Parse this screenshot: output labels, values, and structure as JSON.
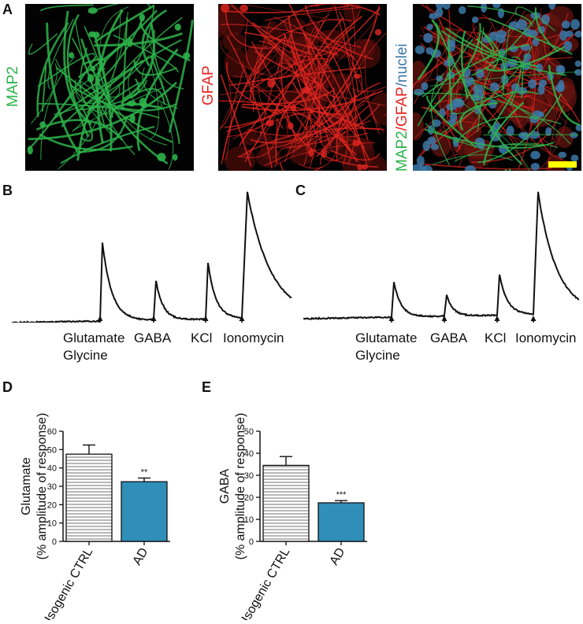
{
  "figure": {
    "panel_letters": {
      "A": "A",
      "B": "B",
      "C": "C",
      "D": "D",
      "E": "E"
    },
    "panel_a": {
      "label_map2": "MAP2",
      "label_gfap": "GFAP",
      "merge_label": {
        "part1": "MAP2",
        "sep1": "/",
        "part2": "GFAP",
        "sep2": "/",
        "part3": "nuclei"
      },
      "colors": {
        "map2": "#2db34a",
        "gfap": "#e52620",
        "nuclei": "#3b78a8",
        "scale_bar": "#ffff00"
      }
    },
    "trace_b": {
      "stimuli": [
        {
          "line1": "Glutamate",
          "line2": "Glycine"
        },
        {
          "line1": "GABA",
          "line2": ""
        },
        {
          "line1": "KCl",
          "line2": ""
        },
        {
          "line1": "Ionomycin",
          "line2": ""
        }
      ]
    },
    "trace_c": {
      "stimuli": [
        {
          "line1": "Glutamate",
          "line2": "Glycine"
        },
        {
          "line1": "GABA",
          "line2": ""
        },
        {
          "line1": "KCl",
          "line2": ""
        },
        {
          "line1": "Ionomycin",
          "line2": ""
        }
      ]
    }
  },
  "chart_data": [
    {
      "panel": "D",
      "type": "bar",
      "categories": [
        "Isogenic CTRL",
        "AD"
      ],
      "values": [
        47.5,
        32.5
      ],
      "errors": [
        5.0,
        2.0
      ],
      "significance": [
        "",
        "**"
      ],
      "ylabel_line1": "Glutamate",
      "ylabel_line2": "(% amplitude of response)",
      "ylim": [
        0,
        60
      ],
      "yticks": [
        0,
        10,
        20,
        30,
        40,
        50,
        60
      ],
      "bar_styles": [
        "hatched",
        "solid"
      ],
      "bar_color": "#2f8fb8"
    },
    {
      "panel": "E",
      "type": "bar",
      "categories": [
        "Isogenic CTRL",
        "AD"
      ],
      "values": [
        34.5,
        17.5
      ],
      "errors": [
        4.0,
        1.0
      ],
      "significance": [
        "",
        "***"
      ],
      "ylabel_line1": "GABA",
      "ylabel_line2": "(% amplitude of response)",
      "ylim": [
        0,
        50
      ],
      "yticks": [
        0,
        10,
        20,
        30,
        40,
        50
      ],
      "bar_styles": [
        "hatched",
        "solid"
      ],
      "bar_color": "#2f8fb8"
    }
  ]
}
